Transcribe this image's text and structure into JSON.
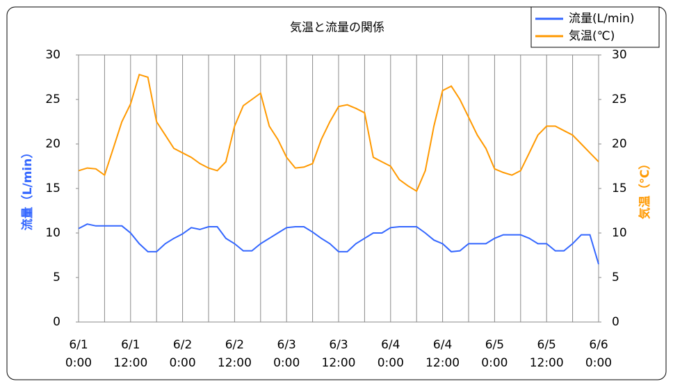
{
  "chart_data": {
    "type": "line",
    "title": "気温と流量の関係",
    "ylabel": "流量（L/min）",
    "y2label": "気温（℃）",
    "x": [
      "6/1 0:00",
      "6/1 2:00",
      "6/1 4:00",
      "6/1 6:00",
      "6/1 8:00",
      "6/1 10:00",
      "6/1 12:00",
      "6/1 14:00",
      "6/1 16:00",
      "6/1 18:00",
      "6/1 20:00",
      "6/1 22:00",
      "6/2 0:00",
      "6/2 2:00",
      "6/2 4:00",
      "6/2 6:00",
      "6/2 8:00",
      "6/2 10:00",
      "6/2 12:00",
      "6/2 14:00",
      "6/2 16:00",
      "6/2 18:00",
      "6/2 20:00",
      "6/2 22:00",
      "6/3 0:00",
      "6/3 2:00",
      "6/3 4:00",
      "6/3 6:00",
      "6/3 8:00",
      "6/3 10:00",
      "6/3 12:00",
      "6/3 14:00",
      "6/3 16:00",
      "6/3 18:00",
      "6/3 20:00",
      "6/3 22:00",
      "6/4 0:00",
      "6/4 2:00",
      "6/4 4:00",
      "6/4 6:00",
      "6/4 8:00",
      "6/4 10:00",
      "6/4 12:00",
      "6/4 14:00",
      "6/4 16:00",
      "6/4 18:00",
      "6/4 20:00",
      "6/4 22:00",
      "6/5 0:00",
      "6/5 2:00",
      "6/5 4:00",
      "6/5 6:00",
      "6/5 8:00",
      "6/5 10:00",
      "6/5 12:00",
      "6/5 14:00",
      "6/5 16:00",
      "6/5 18:00",
      "6/5 20:00",
      "6/5 22:00",
      "6/6 0:00"
    ],
    "series": [
      {
        "name": "流量(L/min)",
        "color": "#3366ff",
        "axis": "y",
        "values": [
          10.5,
          11,
          10.8,
          10.8,
          10.8,
          10.8,
          10,
          8.8,
          7.9,
          7.9,
          8.8,
          9.4,
          9.9,
          10.6,
          10.4,
          10.7,
          10.7,
          9.4,
          8.8,
          8.0,
          8.0,
          8.8,
          9.4,
          10.0,
          10.6,
          10.7,
          10.7,
          10.1,
          9.4,
          8.8,
          7.9,
          7.9,
          8.8,
          9.4,
          10.0,
          10.0,
          10.6,
          10.7,
          10.7,
          10.7,
          10.0,
          9.2,
          8.8,
          7.9,
          8.0,
          8.8,
          8.8,
          8.8,
          9.4,
          9.8,
          9.8,
          9.8,
          9.4,
          8.8,
          8.8,
          8.0,
          8.0,
          8.8,
          9.8,
          9.8,
          6.5
        ]
      },
      {
        "name": "気温(℃)",
        "color": "#ff9900",
        "axis": "y2",
        "values": [
          17,
          17.3,
          17.2,
          16.5,
          19.5,
          22.5,
          24.5,
          27.8,
          27.5,
          22.5,
          21,
          19.5,
          19,
          18.5,
          17.8,
          17.3,
          17.0,
          18,
          22,
          24.3,
          25,
          25.7,
          22,
          20.5,
          18.5,
          17.3,
          17.4,
          17.8,
          20.5,
          22.5,
          24.2,
          24.4,
          24,
          23.5,
          18.5,
          18,
          17.5,
          16,
          15.3,
          14.7,
          17,
          22,
          26,
          26.5,
          25,
          23,
          21,
          19.5,
          17.2,
          16.8,
          16.5,
          17,
          19,
          21,
          22,
          22,
          21.5,
          21,
          20,
          19,
          18
        ]
      }
    ],
    "xlim": [
      "6/1 0:00",
      "6/6 0:00"
    ],
    "xticks": [
      {
        "value": "6/1 0:00",
        "label": "6/1\n0:00"
      },
      {
        "value": "6/1 12:00",
        "label": "6/1\n12:00"
      },
      {
        "value": "6/2 0:00",
        "label": "6/2\n0:00"
      },
      {
        "value": "6/2 12:00",
        "label": "6/2\n12:00"
      },
      {
        "value": "6/3 0:00",
        "label": "6/3\n0:00"
      },
      {
        "value": "6/3 12:00",
        "label": "6/3\n12:00"
      },
      {
        "value": "6/4 0:00",
        "label": "6/4\n0:00"
      },
      {
        "value": "6/4 12:00",
        "label": "6/4\n12:00"
      },
      {
        "value": "6/5 0:00",
        "label": "6/5\n0:00"
      },
      {
        "value": "6/5 12:00",
        "label": "6/5\n12:00"
      },
      {
        "value": "6/6 0:00",
        "label": "6/6\n0:00"
      }
    ],
    "ylim": [
      0,
      30
    ],
    "yticks": [
      0,
      5,
      10,
      15,
      20,
      25,
      30
    ],
    "y2lim": [
      0,
      30
    ],
    "y2ticks": [
      0,
      5,
      10,
      15,
      20,
      25,
      30
    ],
    "legend": "top-right"
  }
}
